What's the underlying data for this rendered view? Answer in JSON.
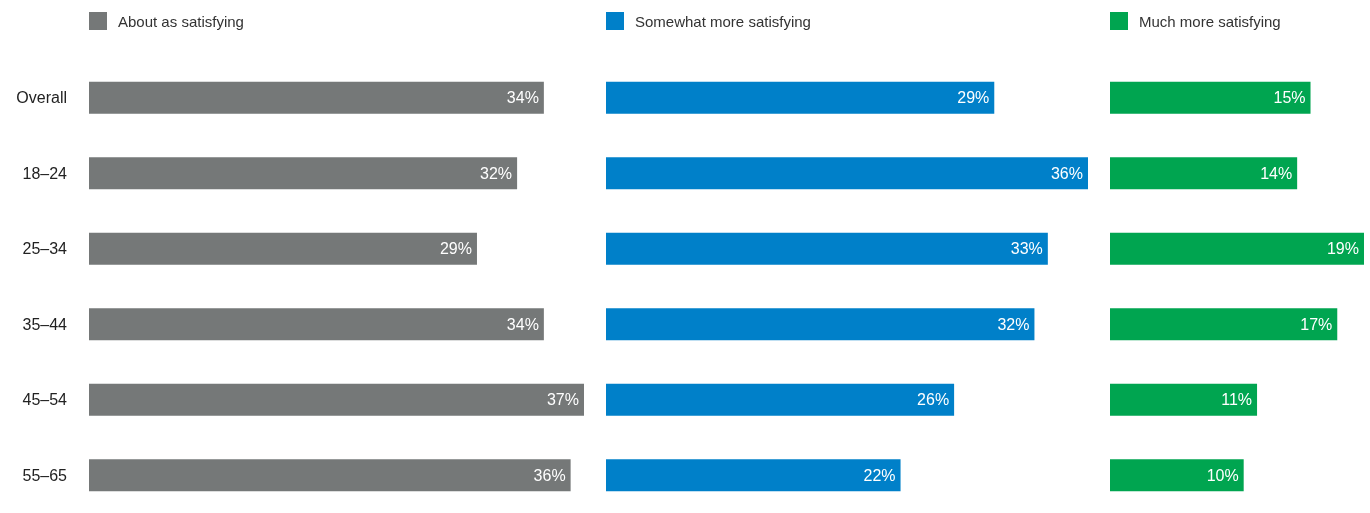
{
  "chart_data": [
    {
      "type": "bar",
      "orientation": "horizontal",
      "categories": [
        "Overall",
        "18–24",
        "25–34",
        "35–44",
        "45–54",
        "55–65"
      ],
      "legend": "top left",
      "tick_labels": "y",
      "series": [
        {
          "name": "About as satisfying",
          "color": "#757878",
          "values": [
            34,
            32,
            29,
            34,
            37,
            36
          ],
          "value_labels": [
            "34%",
            "32%",
            "29%",
            "34%",
            "37%",
            "36%"
          ]
        }
      ]
    },
    {
      "type": "bar",
      "orientation": "horizontal",
      "categories": [
        null,
        null,
        null,
        null,
        null,
        null
      ],
      "legend": "top left",
      "tick_labels": false,
      "series": [
        {
          "name": "Somewhat more satisfying",
          "color": "#0080c9",
          "values": [
            29,
            36,
            33,
            32,
            26,
            22
          ],
          "value_labels": [
            "29%",
            "36%",
            "33%",
            "32%",
            "26%",
            "22%"
          ]
        }
      ]
    },
    {
      "type": "bar",
      "orientation": "horizontal",
      "categories": [
        null,
        null,
        null,
        null,
        null,
        null
      ],
      "legend": "top left",
      "tick_labels": false,
      "series": [
        {
          "name": "Much more satisfying",
          "color": "#00a550",
          "values": [
            15,
            14,
            19,
            17,
            11,
            10
          ],
          "value_labels": [
            "15%",
            "14%",
            "19%",
            "17%",
            "11%",
            "10%"
          ]
        }
      ]
    }
  ]
}
